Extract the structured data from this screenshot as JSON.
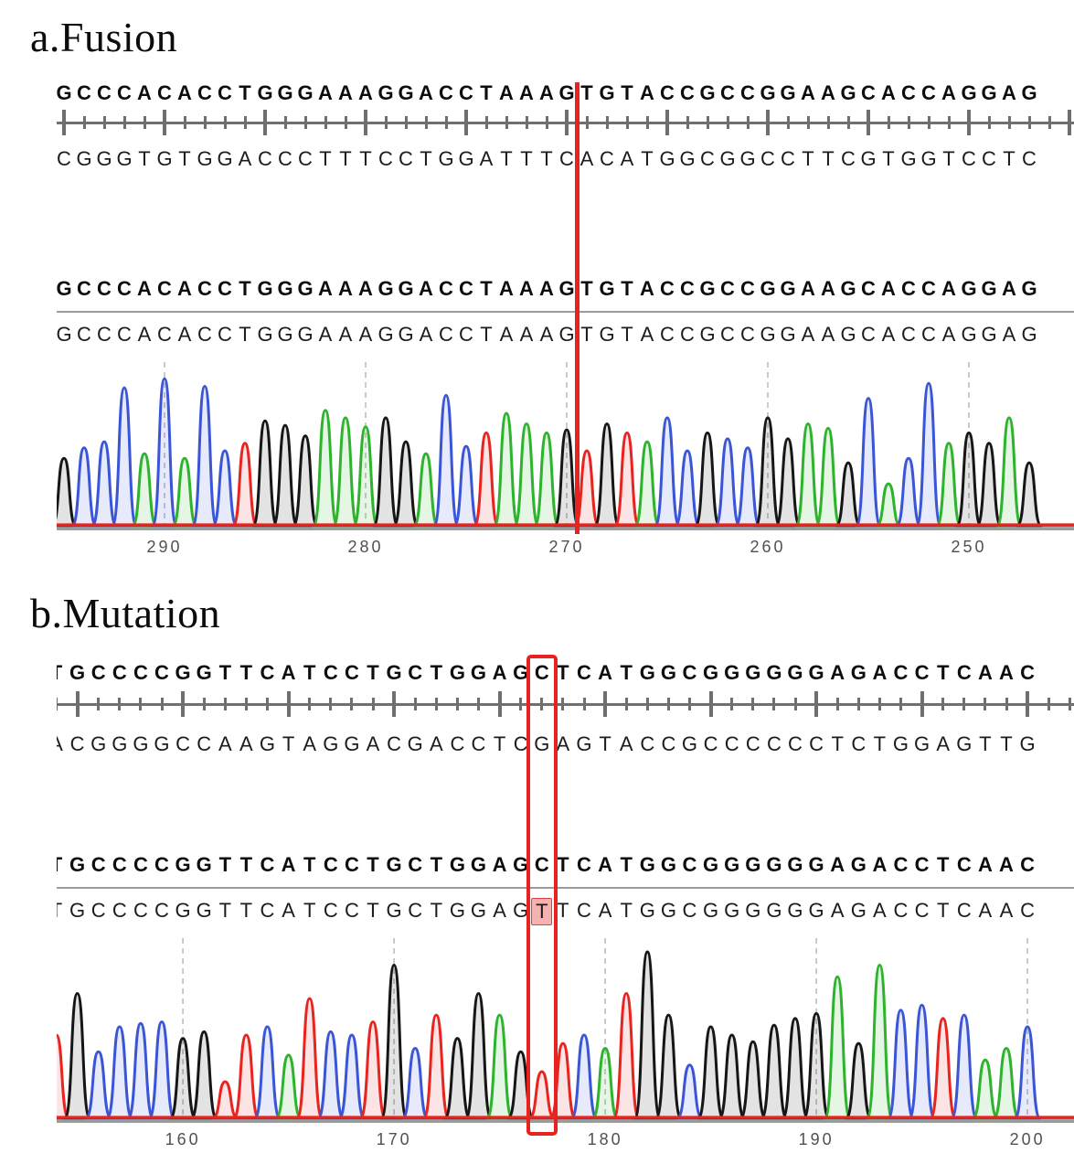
{
  "palette": {
    "base_colors": {
      "A": "#2db32d",
      "C": "#3a55d6",
      "G": "#161616",
      "T": "#e82420"
    },
    "marker_red": "#e8231f",
    "mutation_highlight_bg": "#f6b1b1",
    "ruler_color": "#6f6f6f",
    "gridline_color": "#bdbdbd",
    "axis_text_color": "#515151",
    "baseline_gray": "#9b9b9b"
  },
  "panels": [
    {
      "label": "a.Fusion",
      "variant_kind": "fusion",
      "tracks": {
        "reference_forward": "GCCCACACCTGGGAAAGGACCTAAAGTGTACCGCCGGAAGCACCAGGAG",
        "reference_reverse": "CGGGTGTGGACCCTTTCCTGGATTTCACATGGCGGCCTTCGTGGTCCTC",
        "consensus": "GCCCACACCTGGGAAAGGACCTAAAGTGTACCGCCGGAAGCACCAGGAG",
        "called": "GCCCACACCTGGGAAAGGACCTAAAGTGTACCGCCGGAAGCACCAGGAG"
      },
      "marker": {
        "kind": "breakpoint-line",
        "between_base_indices": [
          25,
          26
        ]
      },
      "ruler_major_offset": 0,
      "axis": {
        "tick_labels": [
          "290",
          "280",
          "270",
          "260",
          "250"
        ],
        "tick_base_indices": [
          5,
          15,
          25,
          35,
          45
        ],
        "direction": "decreasing"
      },
      "chart_data": {
        "type": "chromatogram",
        "bases": "GCCCACACCTGGGAAAGGACCTAAAGTGTACCGCCGGAAGCACCAGGAG",
        "peak_heights_rel": [
          0.45,
          0.52,
          0.56,
          0.92,
          0.48,
          0.98,
          0.45,
          0.93,
          0.5,
          0.55,
          0.7,
          0.67,
          0.6,
          0.77,
          0.72,
          0.66,
          0.72,
          0.56,
          0.48,
          0.87,
          0.53,
          0.62,
          0.75,
          0.68,
          0.62,
          0.64,
          0.5,
          0.68,
          0.62,
          0.56,
          0.72,
          0.5,
          0.62,
          0.58,
          0.52,
          0.72,
          0.58,
          0.68,
          0.65,
          0.42,
          0.85,
          0.28,
          0.45,
          0.95,
          0.55,
          0.62,
          0.55,
          0.72,
          0.42
        ],
        "x_tick_labels": [
          "290",
          "280",
          "270",
          "260",
          "250"
        ],
        "legend": {
          "A": "green",
          "C": "blue",
          "G": "black",
          "T": "red"
        }
      }
    },
    {
      "label": "b.Mutation",
      "variant_kind": "point-mutation",
      "tracks": {
        "reference_forward": "TGCCCCGGTTCATCCTGCTGGAGCTCATGGCGGGGGGAGACCTCAAC",
        "reference_reverse": "ACGGGGCCAAGTAGGACGACCTCGAGTACCGCCCCCCTCTGGAGTTG",
        "consensus": "TGCCCCGGTTCATCCTGCTGGAGCTCATGGCGGGGGGAGACCTCAAC",
        "called": "TGCCCCGGTTCATCCTGCTGGAGTTCATGGCGGGGGGAGACCTCAAC"
      },
      "marker": {
        "kind": "mutation-box",
        "base_index": 23,
        "reference_base": "C",
        "observed_base": "T"
      },
      "ruler_major_offset": 1,
      "axis": {
        "tick_labels": [
          "160",
          "170",
          "180",
          "190",
          "200"
        ],
        "tick_base_indices": [
          6,
          16,
          26,
          36,
          46
        ],
        "direction": "increasing"
      },
      "chart_data": {
        "type": "chromatogram",
        "bases": "TGCCCCGGTTCATCCTGCTGGAGTTCATGGCGGGGGGAGACCTCAAC",
        "peak_heights_rel": [
          0.5,
          0.75,
          0.4,
          0.55,
          0.57,
          0.58,
          0.48,
          0.52,
          0.22,
          0.5,
          0.55,
          0.38,
          0.72,
          0.52,
          0.5,
          0.58,
          0.92,
          0.42,
          0.62,
          0.48,
          0.75,
          0.62,
          0.4,
          0.28,
          0.45,
          0.5,
          0.42,
          0.75,
          1.0,
          0.62,
          0.32,
          0.55,
          0.5,
          0.46,
          0.56,
          0.6,
          0.63,
          0.85,
          0.45,
          0.92,
          0.65,
          0.68,
          0.6,
          0.62,
          0.35,
          0.42,
          0.55
        ],
        "x_tick_labels": [
          "160",
          "170",
          "180",
          "190",
          "200"
        ],
        "legend": {
          "A": "green",
          "C": "blue",
          "G": "black",
          "T": "red"
        }
      }
    }
  ]
}
